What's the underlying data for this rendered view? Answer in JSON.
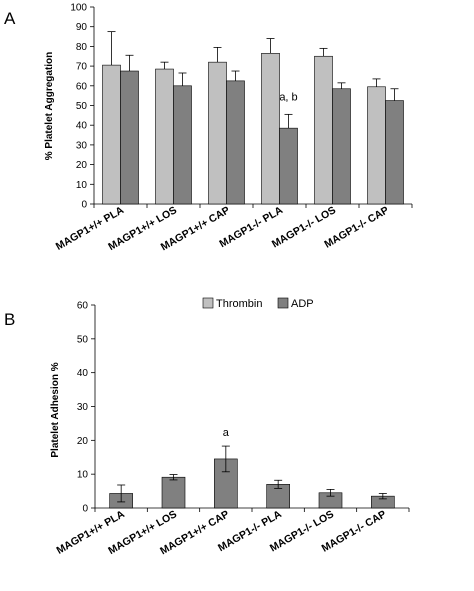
{
  "legend": {
    "items": [
      {
        "label": "Thrombin",
        "color": "#c0c0c0"
      },
      {
        "label": "ADP",
        "color": "#808080"
      }
    ]
  },
  "chart_data": [
    {
      "panel": "A",
      "type": "bar",
      "ylabel": "% Platelet Aggregation",
      "ylim": [
        0,
        100
      ],
      "yticks": [
        0,
        10,
        20,
        30,
        40,
        50,
        60,
        70,
        80,
        90,
        100
      ],
      "grid": false,
      "categories": [
        "MAGP1+/+ PLA",
        "MAGP1+/+ LOS",
        "MAGP1+/+ CAP",
        "MAGP1-/- PLA",
        "MAGP1-/- LOS",
        "MAGP1-/- CAP"
      ],
      "series": [
        {
          "name": "Thrombin",
          "color": "#c0c0c0",
          "values": [
            70.5,
            68.5,
            72,
            76.5,
            75,
            59.5
          ],
          "errors": [
            17,
            3.5,
            7.5,
            7.5,
            4,
            4
          ]
        },
        {
          "name": "ADP",
          "color": "#808080",
          "values": [
            67.5,
            60,
            62.5,
            38.5,
            58.5,
            52.5
          ],
          "errors": [
            8,
            6.5,
            5,
            7,
            3,
            6
          ]
        }
      ],
      "annotations": [
        {
          "category": "MAGP1-/- PLA",
          "text": "a, b"
        }
      ]
    },
    {
      "panel": "B",
      "type": "bar",
      "ylabel": "Platelet Adhesion %",
      "ylim": [
        0,
        60
      ],
      "yticks": [
        0,
        10,
        20,
        30,
        40,
        50,
        60
      ],
      "grid": false,
      "legend_position": "top",
      "categories": [
        "MAGP1+/+ PLA",
        "MAGP1+/+ LOS",
        "MAGP1+/+ CAP",
        "MAGP1-/- PLA",
        "MAGP1-/- LOS",
        "MAGP1-/- CAP"
      ],
      "series": [
        {
          "color": "#808080",
          "values": [
            4.3,
            9.1,
            14.5,
            7,
            4.5,
            3.5
          ],
          "errors": [
            2.5,
            0.8,
            3.8,
            1.2,
            1,
            0.8
          ]
        }
      ],
      "annotations": [
        {
          "category": "MAGP1+/+ CAP",
          "text": "a"
        }
      ]
    }
  ]
}
